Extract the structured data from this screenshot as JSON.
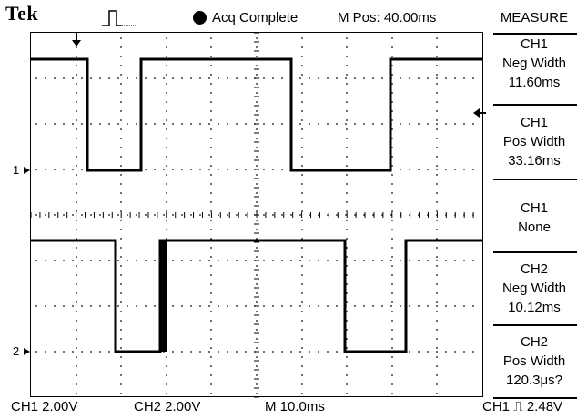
{
  "header": {
    "brand": "Tek",
    "acquisition_status": "Acq Complete",
    "main_position": "M Pos: 40.00ms"
  },
  "markers": {
    "ch1": "1",
    "ch2": "2"
  },
  "measure_panel": {
    "title": "MEASURE",
    "items": [
      {
        "source": "CH1",
        "label": "Neg Width",
        "value": "11.60ms"
      },
      {
        "source": "CH1",
        "label": "Pos Width",
        "value": "33.16ms"
      },
      {
        "source": "CH1",
        "label": "None",
        "value": ""
      },
      {
        "source": "CH2",
        "label": "Neg Width",
        "value": "10.12ms"
      },
      {
        "source": "CH2",
        "label": "Pos Width",
        "value": "120.3μs?"
      }
    ]
  },
  "footer": {
    "ch1_scale": "CH1  2.00V",
    "ch2_scale": "CH2  2.00V",
    "timebase": "M 10.0ms",
    "trigger": "CH1 ⎍ 2.48V"
  },
  "colors": {
    "trace": "#000000",
    "graticule": "#000000",
    "background": "#ffffff"
  }
}
